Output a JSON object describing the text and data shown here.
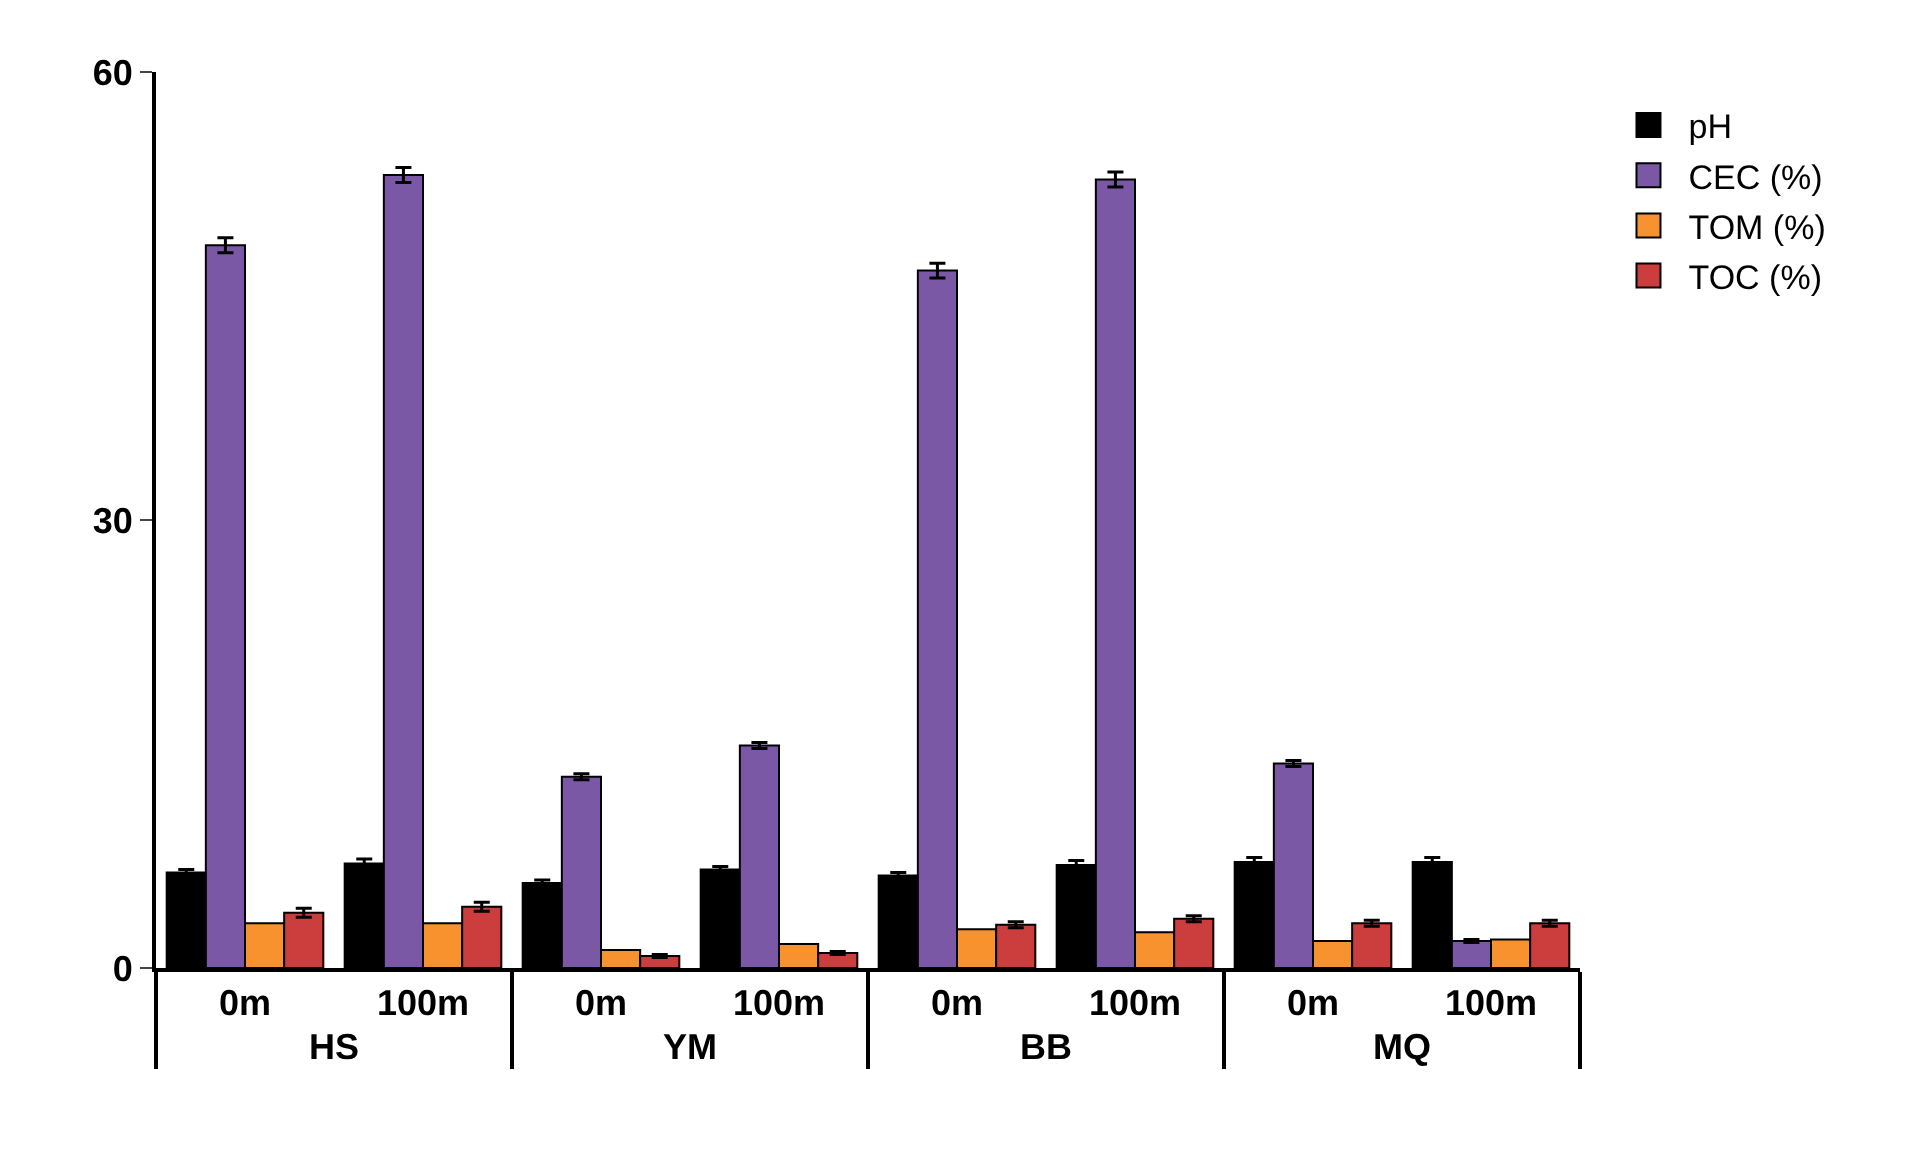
{
  "chart_data": {
    "type": "bar",
    "categories": [
      "0m",
      "100m",
      "0m",
      "100m",
      "0m",
      "100m",
      "0m",
      "100m"
    ],
    "annotations": [
      "HS",
      "YM",
      "BB",
      "MQ"
    ],
    "series": [
      {
        "name": "pH",
        "color": "#000000",
        "values": [
          6.4,
          7.0,
          5.7,
          6.6,
          6.2,
          6.9,
          7.1,
          7.1
        ],
        "errors": [
          0.2,
          0.3,
          0.2,
          0.2,
          0.2,
          0.3,
          0.3,
          0.3
        ]
      },
      {
        "name": "CEC (%)",
        "color": "#7a58a6",
        "values": [
          48.4,
          53.1,
          12.8,
          14.9,
          46.7,
          52.8,
          13.7,
          1.8
        ],
        "errors": [
          0.5,
          0.5,
          0.2,
          0.2,
          0.5,
          0.5,
          0.2,
          0.1
        ]
      },
      {
        "name": "TOM (%)",
        "color": "#f7922e",
        "values": [
          3.0,
          3.0,
          1.2,
          1.6,
          2.6,
          2.4,
          1.8,
          1.9
        ]
      },
      {
        "name": "TOC (%)",
        "color": "#cc3d3d",
        "values": [
          3.7,
          4.1,
          0.8,
          1.0,
          2.9,
          3.3,
          3.0,
          3.0
        ],
        "errors": [
          0.3,
          0.3,
          0.1,
          0.1,
          0.2,
          0.2,
          0.2,
          0.2
        ]
      }
    ],
    "ylim": [
      0,
      60
    ],
    "yticks": [
      0,
      30,
      60
    ],
    "legend": "top right"
  }
}
